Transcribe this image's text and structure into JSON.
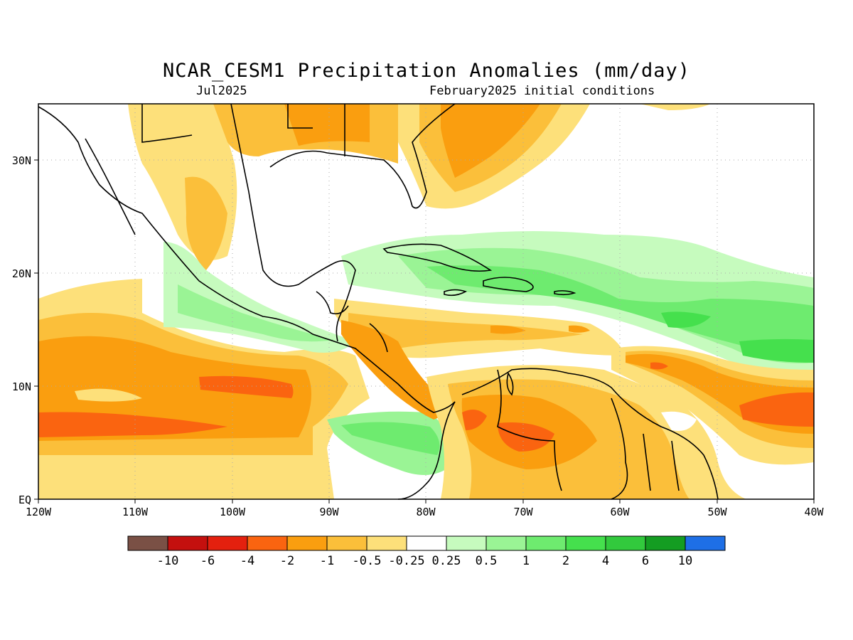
{
  "title": "NCAR_CESM1 Precipitation Anomalies (mm/day)",
  "target_month": "Jul2025",
  "initial_conditions": "February2025 initial conditions",
  "lat_labels": [
    "EQ",
    "10N",
    "20N",
    "30N"
  ],
  "lon_labels": [
    "120W",
    "110W",
    "100W",
    "90W",
    "80W",
    "70W",
    "60W",
    "50W",
    "40W"
  ],
  "colorbar": {
    "colors": [
      "#7a5045",
      "#c4100e",
      "#e4200e",
      "#fa6410",
      "#fa9e0f",
      "#fbbf3a",
      "#fde07a",
      "#ffffff",
      "#c6fbbe",
      "#9af495",
      "#6eeb6f",
      "#45e04d",
      "#32c93d",
      "#149d22",
      "#1e6fe6"
    ],
    "labels": [
      "-10",
      "-6",
      "-4",
      "-2",
      "-1",
      "-0.5",
      "-0.25",
      "0.25",
      "0.5",
      "1",
      "2",
      "4",
      "6",
      "10"
    ]
  },
  "map_extent": {
    "lon_min": -120,
    "lon_max": -40,
    "lat_min": 0,
    "lat_max": 35
  }
}
